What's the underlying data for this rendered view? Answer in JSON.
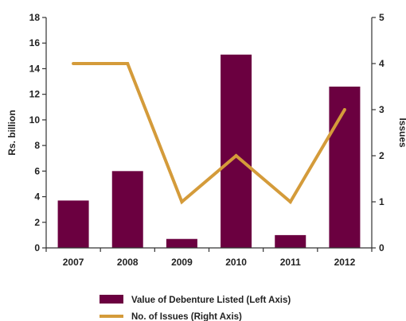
{
  "chart_data": {
    "type": "bar",
    "categories": [
      "2007",
      "2008",
      "2009",
      "2010",
      "2011",
      "2012"
    ],
    "series": [
      {
        "name": "Value of Debenture Listed (Left Axis)",
        "type": "bar",
        "axis": "left",
        "color": "#6b0040",
        "values": [
          3.7,
          6.0,
          0.7,
          15.1,
          1.0,
          12.6
        ]
      },
      {
        "name": "No. of Issues (Right Axis)",
        "type": "line",
        "axis": "right",
        "color": "#d49b3a",
        "values": [
          4,
          4,
          1,
          2,
          1,
          3
        ]
      }
    ],
    "ylabel": "Rs. billion",
    "y2label": "Issues",
    "ylim": [
      0,
      18
    ],
    "y2lim": [
      0,
      5
    ],
    "yticks": [
      "0",
      "2",
      "4",
      "6",
      "8",
      "10",
      "12",
      "14",
      "16",
      "18"
    ],
    "y2ticks": [
      "0",
      "1",
      "2",
      "3",
      "4",
      "5"
    ],
    "grid": false,
    "legend_position": "bottom"
  }
}
